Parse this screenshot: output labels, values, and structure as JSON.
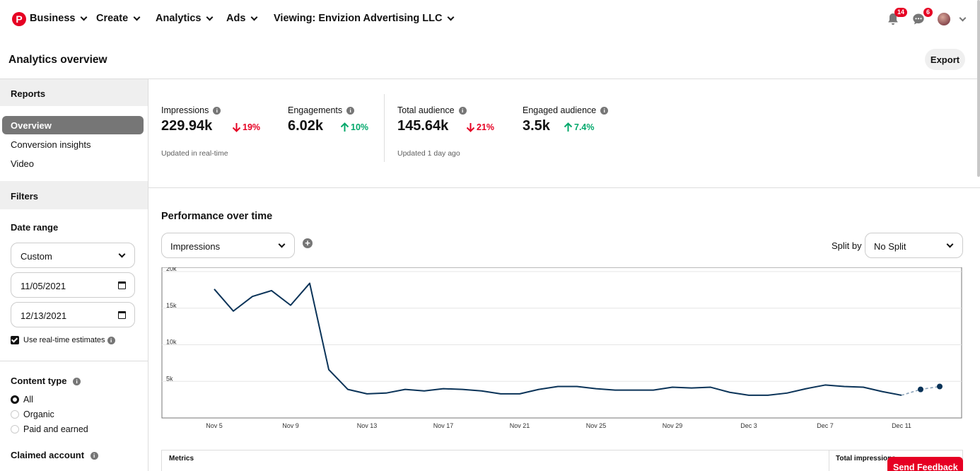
{
  "nav": {
    "logo": "P",
    "business": "Business",
    "create": "Create",
    "analytics": "Analytics",
    "ads": "Ads",
    "viewing": "Viewing: Envizion Advertising LLC",
    "notifications_count": "14",
    "messages_count": "6"
  },
  "header": {
    "title": "Analytics overview",
    "export_label": "Export"
  },
  "sidebar": {
    "reports_heading": "Reports",
    "report_items": [
      "Overview",
      "Conversion insights",
      "Video"
    ],
    "filters_heading": "Filters",
    "date_range_label": "Date range",
    "date_range_value": "Custom",
    "start_date": "11/05/2021",
    "end_date": "12/13/2021",
    "realtime_label": "Use real-time estimates",
    "content_type_label": "Content type",
    "content_type_options": [
      "All",
      "Organic",
      "Paid and earned"
    ],
    "claimed_account_label": "Claimed account"
  },
  "metrics": [
    {
      "label": "Impressions",
      "value": "229.94k",
      "change": "19%",
      "direction": "down"
    },
    {
      "label": "Engagements",
      "value": "6.02k",
      "change": "10%",
      "direction": "up"
    },
    {
      "label": "Total audience",
      "value": "145.64k",
      "change": "21%",
      "direction": "down"
    },
    {
      "label": "Engaged audience",
      "value": "3.5k",
      "change": "7.4%",
      "direction": "up"
    }
  ],
  "notes": {
    "realtime": "Updated in real-time",
    "daily": "Updated 1 day ago"
  },
  "performance": {
    "title": "Performance over time",
    "metric_select": "Impressions",
    "split_label": "Split by",
    "split_value": "No Split"
  },
  "table": {
    "col_metrics": "Metrics",
    "col_total": "Total impressions"
  },
  "feedback_label": "Send Feedback",
  "colors": {
    "brand": "#e60023",
    "line": "#0a3358",
    "up": "#00a86b",
    "down": "#e60023"
  },
  "chart_data": {
    "type": "line",
    "ylim": [
      0,
      20000
    ],
    "yticks": [
      "20k",
      "15k",
      "10k",
      "5k"
    ],
    "ytick_values": [
      20000,
      15000,
      10000,
      5000
    ],
    "xtick_labels": [
      "Nov 5",
      "Nov 9",
      "Nov 13",
      "Nov 17",
      "Nov 21",
      "Nov 25",
      "Nov 29",
      "Dec 3",
      "Dec 7",
      "Dec 11"
    ],
    "x": [
      "Nov 5",
      "Nov 6",
      "Nov 7",
      "Nov 8",
      "Nov 9",
      "Nov 10",
      "Nov 11",
      "Nov 12",
      "Nov 13",
      "Nov 14",
      "Nov 15",
      "Nov 16",
      "Nov 17",
      "Nov 18",
      "Nov 19",
      "Nov 20",
      "Nov 21",
      "Nov 22",
      "Nov 23",
      "Nov 24",
      "Nov 25",
      "Nov 26",
      "Nov 27",
      "Nov 28",
      "Nov 29",
      "Nov 30",
      "Dec 1",
      "Dec 2",
      "Dec 3",
      "Dec 4",
      "Dec 5",
      "Dec 6",
      "Dec 7",
      "Dec 8",
      "Dec 9",
      "Dec 10",
      "Dec 11",
      "Dec 12",
      "Dec 13"
    ],
    "series": [
      {
        "values": [
          17600,
          14600,
          16600,
          17400,
          15400,
          18400,
          6600,
          3900,
          3300,
          3400,
          3900,
          3700,
          4000,
          3900,
          3700,
          3300,
          3300,
          3900,
          4300,
          4300,
          4000,
          3800,
          3800,
          3800,
          4200,
          4100,
          4200,
          3500,
          3100,
          3100,
          3400,
          4000,
          4500,
          4300,
          4200,
          3600,
          3100,
          3900,
          4300
        ],
        "estimated_from": "Dec 11"
      }
    ]
  }
}
